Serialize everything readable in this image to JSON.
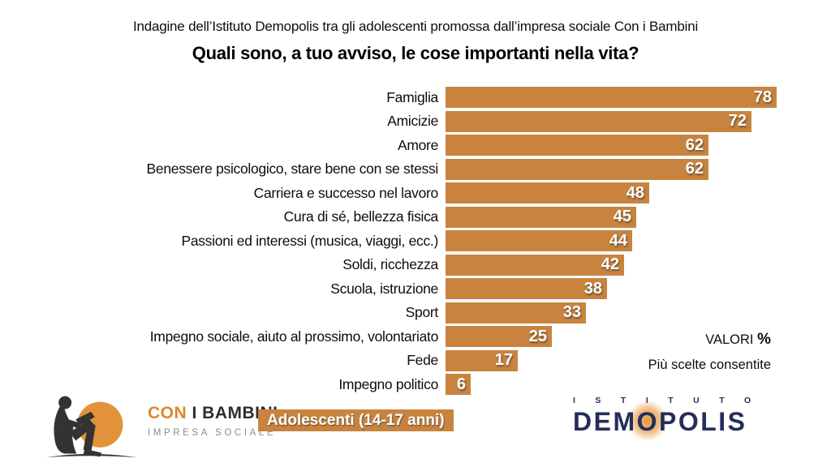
{
  "header": {
    "subtitle": "Indagine dell’Istituto Demopolis tra gli adolescenti promossa dall’impresa sociale Con i Bambini",
    "title": "Quali sono, a tuo avviso, le cose importanti nella vita?"
  },
  "chart_data": {
    "type": "bar",
    "orientation": "horizontal",
    "title": "Quali sono, a tuo avviso, le cose importanti nella vita?",
    "categories": [
      "Famiglia",
      "Amicizie",
      "Amore",
      "Benessere psicologico, stare bene con se stessi",
      "Carriera e successo nel lavoro",
      "Cura di sé, bellezza fisica",
      "Passioni ed interessi (musica, viaggi, ecc.)",
      "Soldi, ricchezza",
      "Scuola, istruzione",
      "Sport",
      "Impegno sociale, aiuto al prossimo, volontariato",
      "Fede",
      "Impegno politico"
    ],
    "values": [
      78,
      72,
      62,
      62,
      48,
      45,
      44,
      42,
      38,
      33,
      25,
      17,
      6
    ],
    "unit": "%",
    "xlim": [
      0,
      100
    ],
    "grid": false,
    "legend": false,
    "value_labels_inside_bars": true,
    "bar_color": "#c8843f",
    "value_label_color": "#ffffff"
  },
  "annotations": {
    "valori_label": "VALORI",
    "valori_unit": "%",
    "note": "Più scelte consentite"
  },
  "footer": {
    "badge": "Adolescenti (14-17 anni)",
    "con_i_bambini": {
      "word_orange": "CON",
      "word_dark": " I BAMBINI",
      "tagline": "IMPRESA SOCIALE"
    },
    "demopolis": {
      "top": "ISTITUTO",
      "main_parts": [
        "DEM",
        "O",
        "POLIS"
      ]
    }
  },
  "colors": {
    "bar_orange": "#c8843f",
    "logo_circle_orange": "#e2923a",
    "logo_navy": "#242e5b",
    "silhouette_dark": "#333333",
    "text_black": "#0d0d0d",
    "tagline_gray": "#8c8c8c",
    "con_orange": "#e0862f"
  }
}
